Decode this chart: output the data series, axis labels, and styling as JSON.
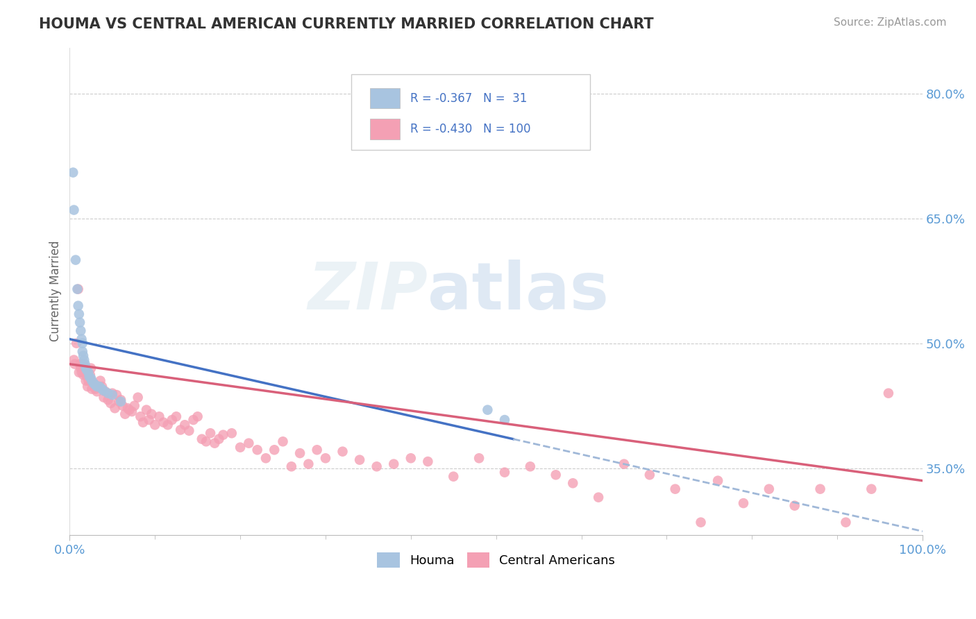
{
  "title": "HOUMA VS CENTRAL AMERICAN CURRENTLY MARRIED CORRELATION CHART",
  "source": "Source: ZipAtlas.com",
  "ylabel": "Currently Married",
  "watermark": "ZIPatlas",
  "houma_r": "-0.367",
  "houma_n": "31",
  "central_r": "-0.430",
  "central_n": "100",
  "houma_color": "#a8c4e0",
  "central_color": "#f4a0b4",
  "houma_line_color": "#4472c4",
  "central_line_color": "#d9607a",
  "houma_dashed_color": "#a0b8d8",
  "background_color": "#ffffff",
  "grid_color": "#cccccc",
  "y_tick_values": [
    0.35,
    0.5,
    0.65,
    0.8
  ],
  "y_tick_labels": [
    "35.0%",
    "50.0%",
    "65.0%",
    "80.0%"
  ],
  "xlim": [
    0.0,
    1.0
  ],
  "ylim": [
    0.27,
    0.855
  ],
  "houma_points_x": [
    0.004,
    0.005,
    0.007,
    0.009,
    0.01,
    0.011,
    0.012,
    0.013,
    0.014,
    0.015,
    0.015,
    0.016,
    0.017,
    0.018,
    0.019,
    0.02,
    0.022,
    0.023,
    0.025,
    0.026,
    0.028,
    0.03,
    0.032,
    0.035,
    0.038,
    0.04,
    0.045,
    0.05,
    0.06,
    0.49,
    0.51
  ],
  "houma_points_y": [
    0.705,
    0.66,
    0.6,
    0.565,
    0.545,
    0.535,
    0.525,
    0.515,
    0.505,
    0.5,
    0.49,
    0.485,
    0.48,
    0.475,
    0.47,
    0.468,
    0.465,
    0.46,
    0.458,
    0.455,
    0.452,
    0.45,
    0.448,
    0.448,
    0.445,
    0.443,
    0.44,
    0.438,
    0.43,
    0.42,
    0.408
  ],
  "central_points_x": [
    0.005,
    0.006,
    0.008,
    0.01,
    0.011,
    0.012,
    0.013,
    0.014,
    0.015,
    0.016,
    0.017,
    0.018,
    0.019,
    0.02,
    0.021,
    0.022,
    0.024,
    0.025,
    0.026,
    0.028,
    0.03,
    0.032,
    0.034,
    0.036,
    0.038,
    0.04,
    0.042,
    0.045,
    0.048,
    0.05,
    0.053,
    0.055,
    0.058,
    0.06,
    0.062,
    0.065,
    0.068,
    0.07,
    0.073,
    0.076,
    0.08,
    0.083,
    0.086,
    0.09,
    0.093,
    0.096,
    0.1,
    0.105,
    0.11,
    0.115,
    0.12,
    0.125,
    0.13,
    0.135,
    0.14,
    0.145,
    0.15,
    0.155,
    0.16,
    0.165,
    0.17,
    0.175,
    0.18,
    0.19,
    0.2,
    0.21,
    0.22,
    0.23,
    0.24,
    0.25,
    0.26,
    0.27,
    0.28,
    0.29,
    0.3,
    0.32,
    0.34,
    0.36,
    0.38,
    0.4,
    0.42,
    0.45,
    0.48,
    0.51,
    0.54,
    0.57,
    0.59,
    0.62,
    0.65,
    0.68,
    0.71,
    0.74,
    0.76,
    0.79,
    0.82,
    0.85,
    0.88,
    0.91,
    0.94,
    0.96
  ],
  "central_points_y": [
    0.48,
    0.475,
    0.5,
    0.565,
    0.465,
    0.475,
    0.47,
    0.465,
    0.475,
    0.462,
    0.468,
    0.472,
    0.455,
    0.462,
    0.448,
    0.455,
    0.462,
    0.47,
    0.445,
    0.452,
    0.445,
    0.442,
    0.448,
    0.455,
    0.448,
    0.435,
    0.442,
    0.432,
    0.428,
    0.44,
    0.422,
    0.438,
    0.43,
    0.432,
    0.425,
    0.415,
    0.422,
    0.42,
    0.418,
    0.425,
    0.435,
    0.412,
    0.405,
    0.42,
    0.408,
    0.415,
    0.402,
    0.412,
    0.405,
    0.402,
    0.408,
    0.412,
    0.396,
    0.402,
    0.395,
    0.408,
    0.412,
    0.385,
    0.382,
    0.392,
    0.38,
    0.385,
    0.39,
    0.392,
    0.375,
    0.38,
    0.372,
    0.362,
    0.372,
    0.382,
    0.352,
    0.368,
    0.355,
    0.372,
    0.362,
    0.37,
    0.36,
    0.352,
    0.355,
    0.362,
    0.358,
    0.34,
    0.362,
    0.345,
    0.352,
    0.342,
    0.332,
    0.315,
    0.355,
    0.342,
    0.325,
    0.285,
    0.335,
    0.308,
    0.325,
    0.305,
    0.325,
    0.285,
    0.325,
    0.44
  ]
}
